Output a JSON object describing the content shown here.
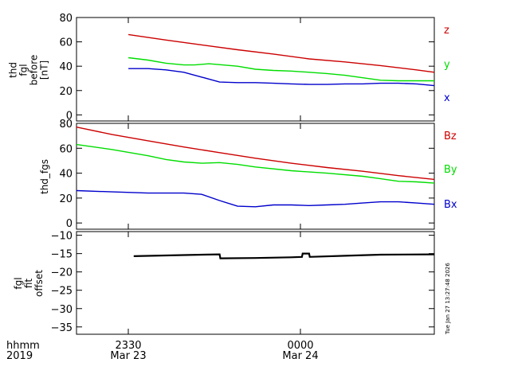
{
  "colors": {
    "axis": "#000000",
    "red": "#cc0000",
    "green": "#00dd00",
    "blue": "#0000cc",
    "black": "#000000"
  },
  "footer": {
    "row1_label": "hhmm",
    "row2_label": "2019",
    "ticks": [
      {
        "hhmm": "2330",
        "date": "Mar 23"
      },
      {
        "hhmm": "0000",
        "date": "Mar 24"
      }
    ]
  },
  "timestamp": "Tue Jan 27 13:27:48 2026",
  "chart_data": [
    {
      "type": "line",
      "ylabel_lines": [
        "thd",
        "fgl",
        "before",
        "[nT]"
      ],
      "ylim": [
        -5,
        80
      ],
      "yticks": [
        0,
        20,
        40,
        60,
        80
      ],
      "ytick_labels": [
        "0",
        "20",
        "40",
        "60",
        "80"
      ],
      "xlim": [
        0.0,
        1.0
      ],
      "series": [
        {
          "name": "z",
          "color": "red",
          "x": [
            0.145,
            0.25,
            0.35,
            0.45,
            0.55,
            0.65,
            0.75,
            0.85,
            0.95,
            1.0
          ],
          "y": [
            66,
            61.5,
            57.5,
            53.5,
            50,
            46,
            43.5,
            40.5,
            37,
            35
          ]
        },
        {
          "name": "y",
          "color": "green",
          "x": [
            0.145,
            0.2,
            0.25,
            0.3,
            0.33,
            0.37,
            0.45,
            0.5,
            0.55,
            0.6,
            0.65,
            0.7,
            0.75,
            0.8,
            0.85,
            0.9,
            0.95,
            1.0
          ],
          "y": [
            47,
            45,
            42.5,
            41,
            41,
            42,
            40,
            37.5,
            36.5,
            36,
            35,
            34,
            32.5,
            30.5,
            28.5,
            28,
            28,
            28
          ]
        },
        {
          "name": "x",
          "color": "blue",
          "x": [
            0.145,
            0.2,
            0.25,
            0.3,
            0.35,
            0.4,
            0.45,
            0.5,
            0.55,
            0.6,
            0.65,
            0.7,
            0.75,
            0.8,
            0.85,
            0.9,
            0.95,
            1.0
          ],
          "y": [
            38,
            38,
            37,
            35,
            31,
            27,
            26.5,
            26.5,
            26,
            25.5,
            25,
            25,
            25.5,
            25.5,
            26,
            26,
            25.5,
            24
          ]
        }
      ]
    },
    {
      "type": "line",
      "ylabel_lines": [
        "thd_fgs"
      ],
      "ylim": [
        -5,
        80
      ],
      "yticks": [
        0,
        20,
        40,
        60,
        80
      ],
      "ytick_labels": [
        "0",
        "20",
        "40",
        "60",
        "80"
      ],
      "xlim": [
        0.0,
        1.0
      ],
      "series": [
        {
          "name": "Bz",
          "color": "red",
          "x": [
            0.0,
            0.1,
            0.2,
            0.3,
            0.4,
            0.5,
            0.6,
            0.7,
            0.8,
            0.9,
            1.0
          ],
          "y": [
            77,
            71,
            66,
            61,
            56.5,
            52,
            48,
            44.5,
            41.5,
            38,
            35
          ]
        },
        {
          "name": "By",
          "color": "green",
          "x": [
            0.0,
            0.1,
            0.2,
            0.25,
            0.3,
            0.35,
            0.4,
            0.45,
            0.5,
            0.6,
            0.7,
            0.8,
            0.85,
            0.9,
            0.95,
            1.0
          ],
          "y": [
            63,
            59,
            54,
            51,
            49,
            48,
            48.5,
            47,
            45,
            42,
            40,
            37.5,
            35.5,
            33.5,
            33,
            32
          ]
        },
        {
          "name": "Bx",
          "color": "blue",
          "x": [
            0.0,
            0.1,
            0.2,
            0.3,
            0.35,
            0.4,
            0.45,
            0.5,
            0.55,
            0.6,
            0.65,
            0.7,
            0.75,
            0.8,
            0.85,
            0.9,
            0.95,
            1.0
          ],
          "y": [
            26,
            25,
            24,
            24,
            23,
            18,
            13.5,
            13,
            14.5,
            14.5,
            14,
            14.5,
            15,
            16,
            17,
            17,
            16,
            15
          ]
        }
      ]
    },
    {
      "type": "line",
      "ylabel_lines": [
        "fgl",
        "fit",
        "offset"
      ],
      "ylim": [
        -37,
        -9
      ],
      "yticks": [
        -35,
        -30,
        -25,
        -20,
        -15,
        -10
      ],
      "ytick_labels": [
        "−35",
        "−30",
        "−25",
        "−20",
        "−15",
        "−10"
      ],
      "xlim": [
        0.0,
        1.0
      ],
      "series": [
        {
          "name": "offset",
          "color": "black",
          "x": [
            0.16,
            0.3,
            0.4,
            0.402,
            0.5,
            0.6,
            0.63,
            0.632,
            0.65,
            0.652,
            0.75,
            0.85,
            1.0
          ],
          "y": [
            -15.7,
            -15.4,
            -15.2,
            -16.3,
            -16.2,
            -16.0,
            -15.9,
            -15.0,
            -15.0,
            -15.9,
            -15.6,
            -15.3,
            -15.2
          ]
        }
      ]
    }
  ]
}
